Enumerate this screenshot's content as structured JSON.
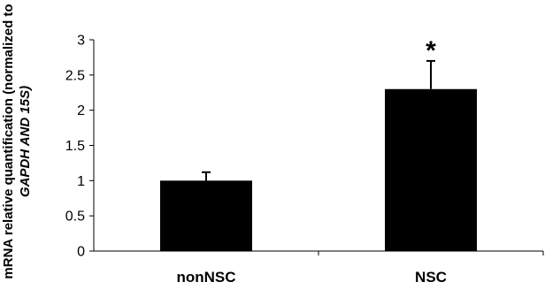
{
  "chart_data": {
    "type": "bar",
    "categories": [
      "nonNSC",
      "NSC"
    ],
    "values": [
      1.0,
      2.3
    ],
    "errors": [
      0.12,
      0.4
    ],
    "significance": [
      "",
      "*"
    ],
    "ylabel_line1": "mRNA relative quantification (normalized to",
    "ylabel_line2": "GAPDH AND 15S)",
    "ylim": [
      0,
      3
    ],
    "yticks": [
      0,
      0.5,
      1,
      1.5,
      2,
      2.5,
      3
    ],
    "ytick_labels": [
      "0",
      "0.5",
      "1",
      "1.5",
      "2",
      "2.5",
      "3"
    ],
    "grid": false,
    "bar_color": "#000000"
  }
}
